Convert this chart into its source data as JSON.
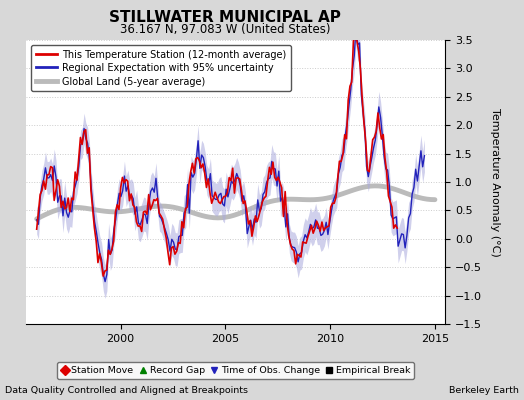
{
  "title": "STILLWATER MUNICIPAL AP",
  "subtitle": "36.167 N, 97.083 W (United States)",
  "ylabel": "Temperature Anomaly (°C)",
  "footer_left": "Data Quality Controlled and Aligned at Breakpoints",
  "footer_right": "Berkeley Earth",
  "xlim": [
    1995.5,
    2015.5
  ],
  "ylim": [
    -1.5,
    3.5
  ],
  "yticks": [
    -1.5,
    -1.0,
    -0.5,
    0,
    0.5,
    1.0,
    1.5,
    2.0,
    2.5,
    3.0,
    3.5
  ],
  "xticks": [
    2000,
    2005,
    2010,
    2015
  ],
  "bg_color": "#d8d8d8",
  "plot_bg_color": "#ffffff",
  "regional_color": "#2222bb",
  "regional_fill_color": "#aaaadd",
  "global_color": "#bbbbbb",
  "station_color": "#dd0000",
  "legend_items": [
    "This Temperature Station (12-month average)",
    "Regional Expectation with 95% uncertainty",
    "Global Land (5-year average)"
  ]
}
